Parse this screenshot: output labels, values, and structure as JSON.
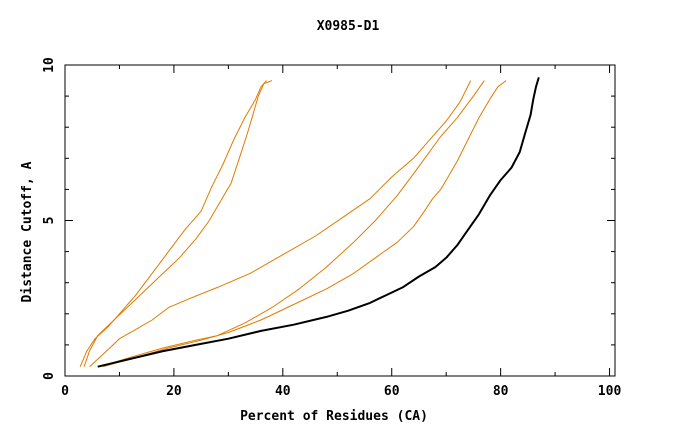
{
  "chart_data": {
    "type": "line",
    "title": "X0985-D1",
    "xlabel": "Percent of Residues (CA)",
    "ylabel": "Distance Cutoff, A",
    "xlim": [
      0,
      101
    ],
    "ylim": [
      0,
      10
    ],
    "x_ticks": [
      0,
      20,
      40,
      60,
      80,
      100
    ],
    "x_tick_labels": [
      "0",
      "20",
      "40",
      "60",
      "80",
      "100"
    ],
    "y_ticks": [
      0,
      5,
      10
    ],
    "y_tick_labels": [
      "0",
      "5",
      "10"
    ],
    "y_minor_step": 1,
    "x_minor_step": 10,
    "grid": false,
    "colors": {
      "highlight": "#000000",
      "other": "#e07b00",
      "axes": "#000000"
    },
    "series": [
      {
        "style": "other",
        "points": [
          [
            2.8,
            0.3
          ],
          [
            4,
            0.8
          ],
          [
            5.5,
            1.2
          ],
          [
            8,
            1.6
          ],
          [
            10,
            2.0
          ],
          [
            13,
            2.6
          ],
          [
            16,
            3.3
          ],
          [
            19,
            4.0
          ],
          [
            22,
            4.7
          ],
          [
            25,
            5.3
          ],
          [
            27,
            6.1
          ],
          [
            29,
            6.8
          ],
          [
            31,
            7.6
          ],
          [
            33,
            8.3
          ],
          [
            35,
            8.9
          ],
          [
            36,
            9.3
          ],
          [
            37,
            9.5
          ]
        ]
      },
      {
        "style": "other",
        "points": [
          [
            3.5,
            0.3
          ],
          [
            4.5,
            0.8
          ],
          [
            6,
            1.3
          ],
          [
            9,
            1.8
          ],
          [
            12,
            2.3
          ],
          [
            15,
            2.8
          ],
          [
            18,
            3.3
          ],
          [
            21,
            3.8
          ],
          [
            24,
            4.4
          ],
          [
            26.5,
            5.0
          ],
          [
            28.5,
            5.6
          ],
          [
            30.5,
            6.2
          ],
          [
            32,
            7.0
          ],
          [
            33.5,
            7.8
          ],
          [
            34.5,
            8.4
          ],
          [
            35.5,
            9.0
          ],
          [
            36.5,
            9.4
          ],
          [
            38,
            9.5
          ]
        ]
      },
      {
        "style": "other",
        "points": [
          [
            4.5,
            0.3
          ],
          [
            7,
            0.7
          ],
          [
            10,
            1.2
          ],
          [
            13,
            1.5
          ],
          [
            16,
            1.8
          ],
          [
            19,
            2.2
          ],
          [
            23,
            2.5
          ],
          [
            28,
            2.85
          ],
          [
            34,
            3.3
          ],
          [
            40,
            3.9
          ],
          [
            46,
            4.5
          ],
          [
            51,
            5.1
          ],
          [
            56,
            5.7
          ],
          [
            60,
            6.4
          ],
          [
            64,
            7.0
          ],
          [
            67,
            7.6
          ],
          [
            70,
            8.2
          ],
          [
            72.5,
            8.8
          ],
          [
            74.5,
            9.5
          ]
        ]
      },
      {
        "style": "other",
        "points": [
          [
            6.5,
            0.3
          ],
          [
            12,
            0.6
          ],
          [
            18,
            0.9
          ],
          [
            24,
            1.15
          ],
          [
            28,
            1.3
          ],
          [
            33,
            1.7
          ],
          [
            38,
            2.2
          ],
          [
            43,
            2.8
          ],
          [
            48,
            3.5
          ],
          [
            53,
            4.3
          ],
          [
            57,
            5.0
          ],
          [
            61,
            5.8
          ],
          [
            64,
            6.5
          ],
          [
            66.5,
            7.1
          ],
          [
            69,
            7.7
          ],
          [
            72,
            8.3
          ],
          [
            75,
            9.0
          ],
          [
            77,
            9.5
          ]
        ]
      },
      {
        "style": "other",
        "points": [
          [
            7,
            0.3
          ],
          [
            13,
            0.6
          ],
          [
            19,
            0.9
          ],
          [
            25,
            1.15
          ],
          [
            30,
            1.4
          ],
          [
            36,
            1.8
          ],
          [
            42,
            2.3
          ],
          [
            48,
            2.8
          ],
          [
            53,
            3.3
          ],
          [
            57,
            3.8
          ],
          [
            61,
            4.3
          ],
          [
            64,
            4.8
          ],
          [
            66,
            5.3
          ],
          [
            67.5,
            5.7
          ],
          [
            69,
            6.0
          ],
          [
            70,
            6.3
          ],
          [
            72,
            6.9
          ],
          [
            74,
            7.6
          ],
          [
            76,
            8.3
          ],
          [
            78,
            8.9
          ],
          [
            79.5,
            9.3
          ],
          [
            81,
            9.5
          ]
        ]
      },
      {
        "style": "highlight",
        "points": [
          [
            6,
            0.3
          ],
          [
            12,
            0.55
          ],
          [
            18,
            0.8
          ],
          [
            24,
            1.0
          ],
          [
            30,
            1.2
          ],
          [
            36,
            1.45
          ],
          [
            42,
            1.65
          ],
          [
            48,
            1.9
          ],
          [
            52,
            2.1
          ],
          [
            56,
            2.35
          ],
          [
            59,
            2.6
          ],
          [
            62,
            2.85
          ],
          [
            65,
            3.2
          ],
          [
            68,
            3.5
          ],
          [
            70,
            3.8
          ],
          [
            72,
            4.2
          ],
          [
            74,
            4.7
          ],
          [
            76,
            5.2
          ],
          [
            78,
            5.8
          ],
          [
            80,
            6.3
          ],
          [
            82,
            6.7
          ],
          [
            83.5,
            7.2
          ],
          [
            84.5,
            7.8
          ],
          [
            85.5,
            8.4
          ],
          [
            86,
            8.9
          ],
          [
            86.5,
            9.3
          ],
          [
            87,
            9.6
          ]
        ]
      }
    ]
  }
}
